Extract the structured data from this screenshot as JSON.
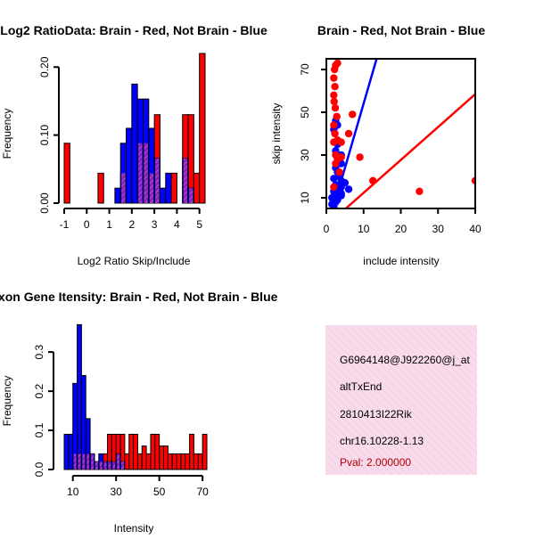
{
  "chart_data": [
    {
      "id": "ratio",
      "type": "bar",
      "title": "Log2 RatioData: Brain - Red, Not Brain - Blue",
      "xlabel": "Log2 Ratio Skip/Include",
      "ylabel": "Frequency",
      "xlim": [
        -1,
        5.25
      ],
      "ylim": [
        0,
        0.22
      ],
      "xticks": [
        "-1",
        "0",
        "1",
        "2",
        "3",
        "4",
        "5"
      ],
      "yticks": [
        "0.00",
        "0.10",
        "0.20"
      ],
      "bin_width": 0.25,
      "series": [
        {
          "name": "Brain",
          "color": "#ff0000",
          "bins_start": [
            -1.0,
            0.5,
            1.5,
            2.25,
            2.5,
            2.75,
            3.0,
            3.75,
            4.25,
            4.5,
            4.75,
            5.0
          ],
          "values": [
            0.088,
            0.044,
            0.044,
            0.088,
            0.088,
            0.044,
            0.13,
            0.044,
            0.13,
            0.13,
            0.044,
            0.22
          ]
        },
        {
          "name": "Not Brain",
          "color": "#0000ff",
          "bins_start": [
            1.25,
            1.5,
            1.75,
            2.0,
            2.25,
            2.5,
            2.75,
            3.0,
            3.25,
            3.5,
            4.25,
            4.5
          ],
          "values": [
            0.022,
            0.088,
            0.11,
            0.175,
            0.153,
            0.153,
            0.11,
            0.066,
            0.022,
            0.044,
            0.066,
            0.022
          ]
        }
      ]
    },
    {
      "id": "scatter",
      "type": "scatter",
      "title": "Brain - Red, Not Brain - Blue",
      "xlabel": "include intensity",
      "ylabel": "skip intensity",
      "xlim": [
        0,
        40
      ],
      "ylim": [
        5,
        75
      ],
      "xticks": [
        0,
        10,
        20,
        30,
        40
      ],
      "yticks": [
        10,
        30,
        50,
        70
      ],
      "series": [
        {
          "name": "Brain",
          "color": "#ff0000",
          "points": [
            [
              2.5,
              72
            ],
            [
              3,
              73
            ],
            [
              2.2,
              70
            ],
            [
              2,
              66
            ],
            [
              2.3,
              62
            ],
            [
              2,
              58
            ],
            [
              2.1,
              55
            ],
            [
              2.4,
              52
            ],
            [
              2.8,
              48
            ],
            [
              2,
              44
            ],
            [
              2.3,
              40
            ],
            [
              3,
              37
            ],
            [
              2,
              36
            ],
            [
              4,
              36
            ],
            [
              6,
              40
            ],
            [
              7,
              49
            ],
            [
              2.5,
              30
            ],
            [
              3,
              28
            ],
            [
              4,
              29
            ],
            [
              9,
              29
            ],
            [
              2.5,
              26
            ],
            [
              3.5,
              22
            ],
            [
              2,
              15
            ],
            [
              12.5,
              18
            ],
            [
              25,
              13
            ],
            [
              40,
              18
            ]
          ],
          "fit": [
            [
              2,
              0
            ],
            [
              41,
              60
            ]
          ]
        },
        {
          "name": "Not Brain",
          "color": "#0000ff",
          "points": [
            [
              2.5,
              46
            ],
            [
              3,
              44
            ],
            [
              2,
              42
            ],
            [
              3,
              35
            ],
            [
              2.5,
              32
            ],
            [
              4,
              30
            ],
            [
              3,
              26
            ],
            [
              4,
              26
            ],
            [
              2.5,
              24
            ],
            [
              3,
              22
            ],
            [
              3.5,
              20
            ],
            [
              2,
              19
            ],
            [
              4,
              18
            ],
            [
              5,
              17
            ],
            [
              2.5,
              16
            ],
            [
              3,
              15
            ],
            [
              4,
              15
            ],
            [
              6,
              14
            ],
            [
              2,
              13
            ],
            [
              3,
              13
            ],
            [
              4,
              12
            ],
            [
              2.5,
              12
            ],
            [
              3,
              11
            ],
            [
              1.5,
              10
            ],
            [
              2,
              9
            ],
            [
              2.5,
              8
            ],
            [
              3,
              9
            ],
            [
              1.5,
              7
            ],
            [
              2,
              6
            ],
            [
              4,
              11
            ]
          ],
          "fit": [
            [
              1,
              0
            ],
            [
              13.5,
              75
            ]
          ]
        }
      ]
    },
    {
      "id": "intensity",
      "type": "bar",
      "title": "Exon Gene Itensity: Brain - Red, Not Brain - Blue",
      "xlabel": "Intensity",
      "ylabel": "Frequency",
      "xlim": [
        6,
        72
      ],
      "ylim": [
        0,
        0.38
      ],
      "xticks": [
        "10",
        "30",
        "50",
        "70"
      ],
      "yticks": [
        "0.0",
        "0.1",
        "0.2",
        "0.3"
      ],
      "bin_width": 2,
      "series": [
        {
          "name": "Brain",
          "color": "#ff0000",
          "bins_start": [
            10,
            12,
            14,
            16,
            18,
            20,
            22,
            24,
            26,
            28,
            30,
            32,
            34,
            36,
            38,
            40,
            42,
            44,
            46,
            48,
            50,
            52,
            54,
            56,
            58,
            60,
            62,
            64,
            66,
            68,
            70
          ],
          "values": [
            0.04,
            0.04,
            0.04,
            0.04,
            0.04,
            0.02,
            0.02,
            0.04,
            0.09,
            0.09,
            0.09,
            0.09,
            0.04,
            0.09,
            0.09,
            0.04,
            0.06,
            0.04,
            0.09,
            0.09,
            0.06,
            0.06,
            0.04,
            0.04,
            0.04,
            0.04,
            0.04,
            0.09,
            0.04,
            0.04,
            0.09
          ]
        },
        {
          "name": "Not Brain",
          "color": "#0000ff",
          "bins_start": [
            6,
            8,
            10,
            12,
            14,
            16,
            18,
            20,
            22,
            24,
            26,
            28,
            30,
            32
          ],
          "values": [
            0.09,
            0.09,
            0.22,
            0.37,
            0.24,
            0.13,
            0.04,
            0.02,
            0.04,
            0.02,
            0.02,
            0.02,
            0.04,
            0.02
          ]
        }
      ]
    }
  ],
  "info_box": {
    "background": "#f8d8ea",
    "lines": [
      "G6964148@J922260@j_at",
      "altTxEnd",
      "2810413I22Rik",
      "chr16.10228-1.13"
    ],
    "pval": "Pval: 2.000000"
  },
  "colors": {
    "brain": "#ff0000",
    "not_brain": "#0000ff",
    "overlap": "#a020c0",
    "axis": "#000000"
  }
}
